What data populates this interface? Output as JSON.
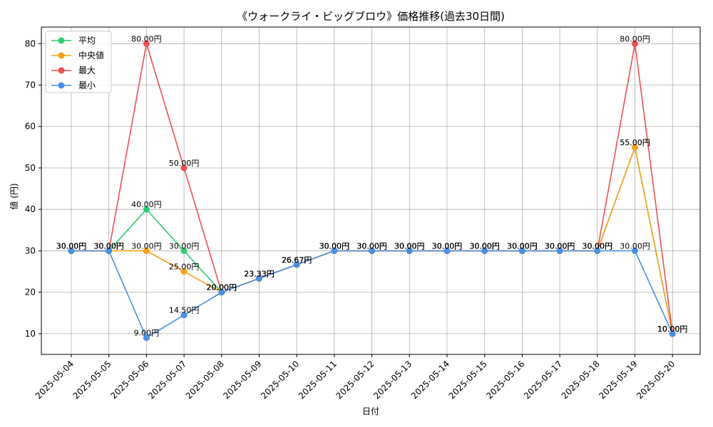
{
  "chart_data": {
    "type": "line",
    "title": "《ウォークライ・ビッグブロウ》価格推移(過去30日間)",
    "xlabel": "日付",
    "ylabel": "値 (円)",
    "ylim": [
      5,
      84
    ],
    "yticks": [
      10,
      20,
      30,
      40,
      50,
      60,
      70,
      80
    ],
    "grid": true,
    "legend_position": "top-left",
    "x": [
      "2025-05-04",
      "2025-05-05",
      "2025-05-06",
      "2025-05-07",
      "2025-05-08",
      "2025-05-09",
      "2025-05-10",
      "2025-05-11",
      "2025-05-12",
      "2025-05-13",
      "2025-05-14",
      "2025-05-15",
      "2025-05-16",
      "2025-05-17",
      "2025-05-18",
      "2025-05-19",
      "2025-05-20"
    ],
    "series": [
      {
        "name": "平均",
        "color": "#2ecc71",
        "values": [
          30,
          30,
          40,
          30,
          20,
          23.33,
          26.67,
          30,
          30,
          30,
          30,
          30,
          30,
          30,
          30,
          55,
          10
        ]
      },
      {
        "name": "中央値",
        "color": "#f5a21b",
        "values": [
          30,
          30,
          30,
          25,
          20,
          23.33,
          26.67,
          30,
          30,
          30,
          30,
          30,
          30,
          30,
          30,
          55,
          10
        ]
      },
      {
        "name": "最大",
        "color": "#ef4f4f",
        "values": [
          30,
          30,
          80,
          50,
          20,
          23.33,
          26.67,
          30,
          30,
          30,
          30,
          30,
          30,
          30,
          30,
          80,
          10
        ]
      },
      {
        "name": "最小",
        "color": "#4a90e2",
        "values": [
          30,
          30,
          9,
          14.5,
          20,
          23.33,
          26.67,
          30,
          30,
          30,
          30,
          30,
          30,
          30,
          30,
          30,
          10
        ]
      }
    ],
    "value_suffix": "円",
    "value_decimals": 2
  }
}
